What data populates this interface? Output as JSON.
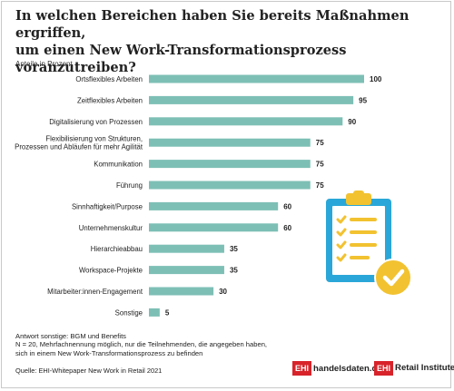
{
  "title_line1": "In welchen Bereichen haben Sie bereits Maßnahmen ergriffen,",
  "title_line2": "um einen New Work-Transformationsprozess voranzutreiben?",
  "unit_label": "Anteile in Prozent",
  "colors": {
    "bar": "#7dbfb5",
    "title": "#222222",
    "accent_red": "#d8232a",
    "clipboard_blue": "#2aa7d8",
    "check_yellow": "#f2c230"
  },
  "chart_data": {
    "type": "bar",
    "orientation": "horizontal",
    "categories": [
      [
        "Ortsflexibles Arbeiten"
      ],
      [
        "Zeitflexibles Arbeiten"
      ],
      [
        "Digitalisierung von Prozessen"
      ],
      [
        "Flexibilisierung von Strukturen,",
        "Prozessen und Abläufen für mehr Agilität"
      ],
      [
        "Kommunikation"
      ],
      [
        "Führung"
      ],
      [
        "Sinnhaftigkeit/Purpose"
      ],
      [
        "Unternehmenskultur"
      ],
      [
        "Hierarchieabbau"
      ],
      [
        "Workspace-Projekte"
      ],
      [
        "Mitarbeiter:innen-Engagement"
      ],
      [
        "Sonstige"
      ]
    ],
    "values": [
      100,
      95,
      90,
      75,
      75,
      75,
      60,
      60,
      35,
      35,
      30,
      5
    ],
    "value_labels": [
      "100",
      "95",
      "90",
      "75",
      "75",
      "75",
      "60",
      "60",
      "35",
      "35",
      "30",
      "5"
    ],
    "ylabel": "Anteile in Prozent",
    "xlim": [
      0,
      100
    ],
    "grid": false,
    "legend": "none"
  },
  "notes": [
    "Antwort sonstige: BGM und Benefits",
    "N = 20, Mehrfachnennung möglich, nur die Teilnehmenden, die angegeben haben,",
    "sich in einem New Work-Transformationsprozess zu befinden"
  ],
  "source": "Quelle: EHI-Whitepaper New Work in Retail 2021",
  "logo1": {
    "box": "EHI",
    "text": "handelsdaten.de"
  },
  "logo2": {
    "box": "EHI",
    "text": "Retail Institute"
  },
  "illustration": "clipboard-checklist-icon"
}
